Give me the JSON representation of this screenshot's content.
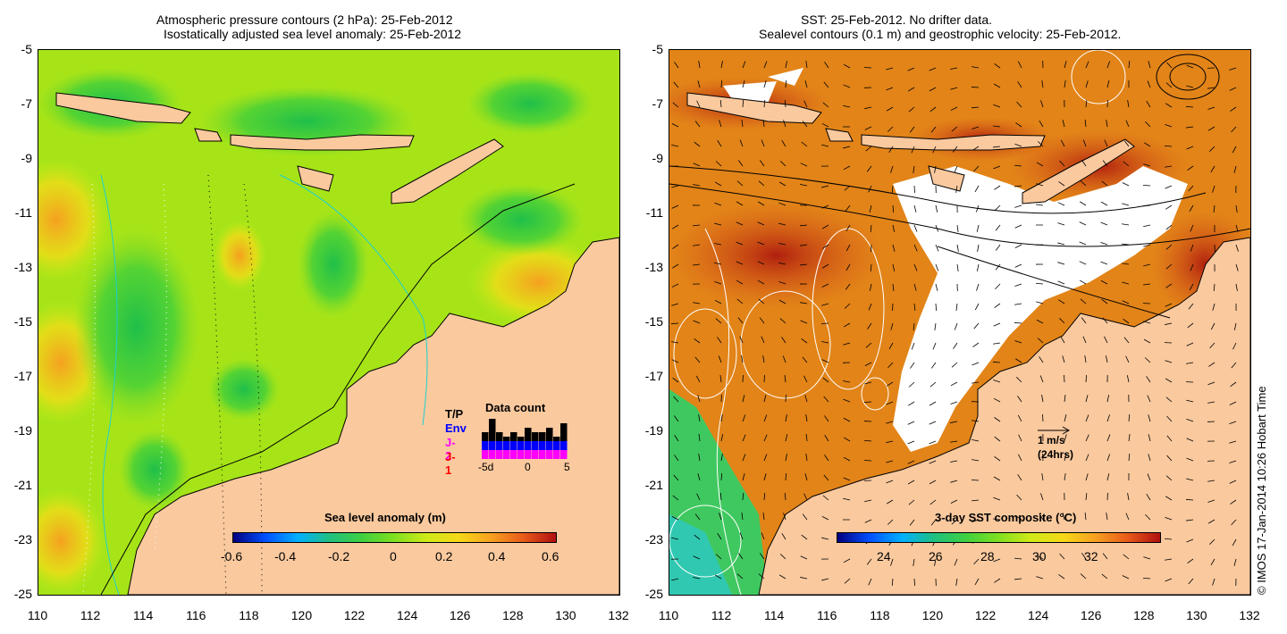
{
  "left_panel": {
    "title_line1": "Atmospheric pressure contours (2 hPa): 25-Feb-2012",
    "title_line2": "Isostatically adjusted sea level anomaly: 25-Feb-2012",
    "colorbar_label": "Sea level anomaly (m)",
    "colorbar_ticks": [
      "-0.6",
      "-0.4",
      "-0.2",
      "0",
      "0.2",
      "0.4",
      "0.6"
    ],
    "legend": {
      "title": "Data count",
      "satellites": [
        {
          "label": "T/P",
          "color": "#000000"
        },
        {
          "label": "Env",
          "color": "#0000ff"
        },
        {
          "label": "J-2",
          "color": "#ff00ff"
        },
        {
          "label": "J-1",
          "color": "#ff0000"
        }
      ],
      "axis_labels": [
        "-5d",
        "0",
        "5"
      ],
      "counts": [
        {
          "total": 6,
          "j2": 2
        },
        {
          "total": 9,
          "j2": 2
        },
        {
          "total": 6,
          "j2": 2
        },
        {
          "total": 5,
          "j2": 2
        },
        {
          "total": 6,
          "j2": 2
        },
        {
          "total": 5,
          "j2": 2
        },
        {
          "total": 7,
          "j2": 2
        },
        {
          "total": 6,
          "j2": 2
        },
        {
          "total": 6,
          "j2": 2
        },
        {
          "total": 7,
          "j2": 2
        },
        {
          "total": 5,
          "j2": 2
        },
        {
          "total": 8,
          "j2": 2
        }
      ]
    }
  },
  "right_panel": {
    "title_line1": "SST: 25-Feb-2012. No drifter data.",
    "title_line2": "Sealevel contours (0.1 m) and geostrophic velocity: 25-Feb-2012.",
    "colorbar_label": "3-day SST composite (°C)",
    "colorbar_ticks": [
      "24",
      "26",
      "28",
      "30",
      "32"
    ],
    "velocity_key_line1": "1 m/s",
    "velocity_key_line2": "(24hrs)"
  },
  "axes": {
    "lat_labels": [
      "-5",
      "-7",
      "-9",
      "-11",
      "-13",
      "-15",
      "-17",
      "-19",
      "-21",
      "-23",
      "-25"
    ],
    "lon_labels": [
      "110",
      "112",
      "114",
      "116",
      "118",
      "120",
      "122",
      "124",
      "126",
      "128",
      "130",
      "132"
    ]
  },
  "colors": {
    "land": "#fac99e",
    "ocean_green": "#8ee022",
    "sst_orange": "#e07a16",
    "no_data": "#ffffff"
  },
  "credit": "© IMOS 17-Jan-2014 10:26 Hobart Time"
}
